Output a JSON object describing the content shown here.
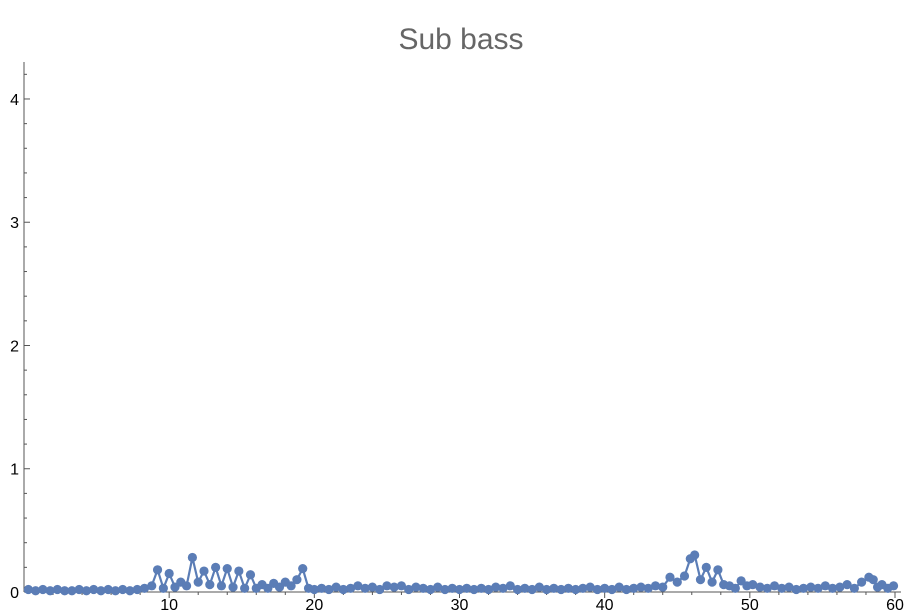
{
  "chart_data": {
    "type": "line",
    "title": "Sub bass",
    "xlabel": "",
    "ylabel": "",
    "xlim": [
      0,
      60
    ],
    "ylim": [
      0,
      4.3
    ],
    "grid": false,
    "x_ticks": [
      10,
      20,
      30,
      40,
      50,
      60
    ],
    "y_ticks": [
      0,
      1,
      2,
      3,
      4
    ],
    "series_color": "#5b7db6",
    "series": [
      {
        "x": [
          0.3,
          0.8,
          1.3,
          1.8,
          2.3,
          2.8,
          3.3,
          3.8,
          4.3,
          4.8,
          5.3,
          5.8,
          6.3,
          6.8,
          7.3,
          7.8,
          8.3,
          8.8,
          9.2,
          9.6,
          10.0,
          10.4,
          10.8,
          11.2,
          11.6,
          12.0,
          12.4,
          12.8,
          13.2,
          13.6,
          14.0,
          14.4,
          14.8,
          15.2,
          15.6,
          16.0,
          16.4,
          16.8,
          17.2,
          17.6,
          18.0,
          18.4,
          18.8,
          19.2,
          19.6,
          20.0,
          20.5,
          21.0,
          21.5,
          22.0,
          22.5,
          23.0,
          23.5,
          24.0,
          24.5,
          25.0,
          25.5,
          26.0,
          26.5,
          27.0,
          27.5,
          28.0,
          28.5,
          29.0,
          29.5,
          30.0,
          30.5,
          31.0,
          31.5,
          32.0,
          32.5,
          33.0,
          33.5,
          34.0,
          34.5,
          35.0,
          35.5,
          36.0,
          36.5,
          37.0,
          37.5,
          38.0,
          38.5,
          39.0,
          39.5,
          40.0,
          40.5,
          41.0,
          41.5,
          42.0,
          42.5,
          43.0,
          43.5,
          44.0,
          44.5,
          45.0,
          45.5,
          45.9,
          46.2,
          46.6,
          47.0,
          47.4,
          47.8,
          48.2,
          48.6,
          49.0,
          49.4,
          49.8,
          50.2,
          50.7,
          51.2,
          51.7,
          52.2,
          52.7,
          53.2,
          53.7,
          54.2,
          54.7,
          55.2,
          55.7,
          56.2,
          56.7,
          57.2,
          57.7,
          58.2,
          58.5,
          58.8,
          59.1,
          59.5,
          59.9
        ],
        "y": [
          0.02,
          0.01,
          0.02,
          0.01,
          0.02,
          0.01,
          0.01,
          0.02,
          0.01,
          0.02,
          0.01,
          0.02,
          0.01,
          0.02,
          0.01,
          0.02,
          0.03,
          0.05,
          0.18,
          0.03,
          0.15,
          0.04,
          0.08,
          0.05,
          0.28,
          0.08,
          0.17,
          0.06,
          0.2,
          0.05,
          0.19,
          0.04,
          0.17,
          0.03,
          0.14,
          0.03,
          0.06,
          0.03,
          0.07,
          0.04,
          0.08,
          0.05,
          0.1,
          0.19,
          0.03,
          0.02,
          0.03,
          0.02,
          0.04,
          0.02,
          0.03,
          0.05,
          0.03,
          0.04,
          0.02,
          0.05,
          0.04,
          0.05,
          0.02,
          0.04,
          0.03,
          0.02,
          0.04,
          0.02,
          0.03,
          0.02,
          0.03,
          0.02,
          0.03,
          0.02,
          0.04,
          0.03,
          0.05,
          0.02,
          0.03,
          0.02,
          0.04,
          0.02,
          0.03,
          0.02,
          0.03,
          0.02,
          0.03,
          0.04,
          0.02,
          0.03,
          0.02,
          0.04,
          0.02,
          0.03,
          0.04,
          0.03,
          0.05,
          0.04,
          0.12,
          0.08,
          0.13,
          0.27,
          0.3,
          0.1,
          0.2,
          0.08,
          0.18,
          0.06,
          0.05,
          0.03,
          0.09,
          0.05,
          0.06,
          0.04,
          0.03,
          0.05,
          0.03,
          0.04,
          0.02,
          0.03,
          0.04,
          0.03,
          0.05,
          0.03,
          0.04,
          0.06,
          0.03,
          0.08,
          0.12,
          0.1,
          0.04,
          0.06,
          0.03,
          0.05
        ]
      }
    ]
  }
}
